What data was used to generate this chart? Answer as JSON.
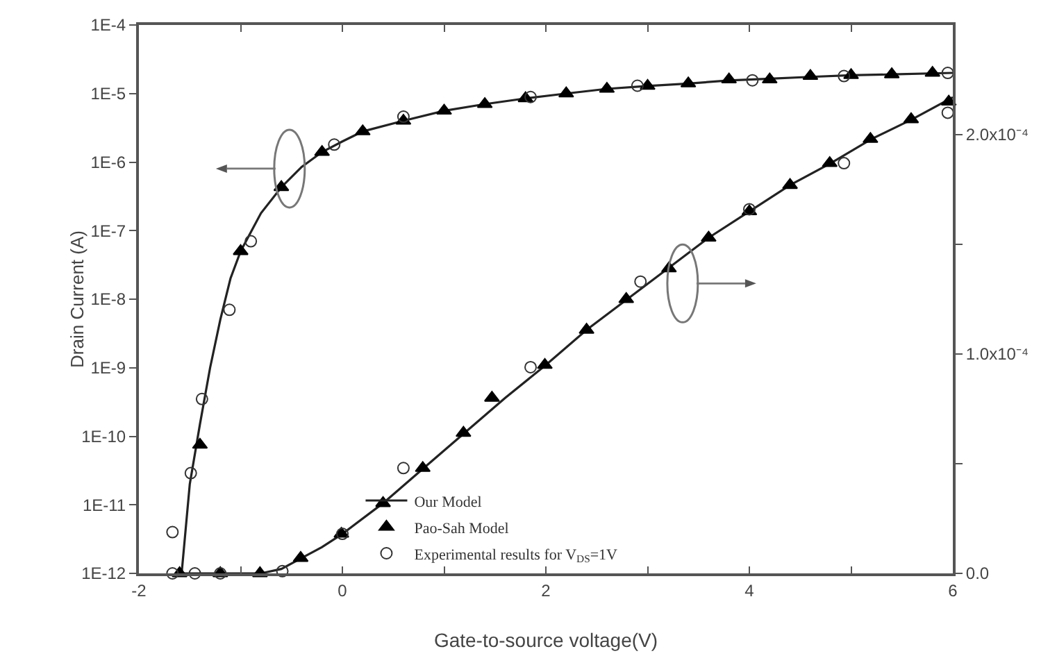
{
  "chart_data": {
    "type": "scatter",
    "xlabel": "Gate-to-source voltage(V)",
    "ylabel": "Drain Current (A)",
    "log": "y",
    "grid": false,
    "legend": "bottom",
    "xlim": [
      -2,
      6
    ],
    "xticks": [
      -2,
      {
        "value": -1,
        "label": null
      },
      0,
      {
        "value": 1,
        "label": null
      },
      2,
      {
        "value": 3,
        "label": null
      },
      4,
      {
        "value": 5,
        "label": null
      },
      6
    ],
    "ylim": [
      1e-12,
      0.0001
    ],
    "yticks": [
      {
        "value": 1e-12,
        "label": "1E-12"
      },
      {
        "value": 1e-11,
        "label": "1E-11"
      },
      {
        "value": 1e-10,
        "label": "1E-10"
      },
      {
        "value": 1e-09,
        "label": "1E-9"
      },
      {
        "value": 1e-08,
        "label": "1E-8"
      },
      {
        "value": 1e-07,
        "label": "1E-7"
      },
      {
        "value": 1e-06,
        "label": "1E-6"
      },
      {
        "value": 1e-05,
        "label": "1E-5"
      },
      {
        "value": 0.0001,
        "label": "1E-4"
      }
    ],
    "y2lim": [
      0,
      0.00025
    ],
    "y2ticks": [
      {
        "value": 0,
        "label": "0.0"
      },
      {
        "value": 5e-05,
        "label": null
      },
      {
        "value": 0.0001,
        "label": "1.0x10⁻⁴"
      },
      {
        "value": 0.00015,
        "label": null
      },
      {
        "value": 0.0002,
        "label": "2.0x10⁻⁴"
      }
    ],
    "series": [
      {
        "name": "Experimental results for V$_{DS}$=1V",
        "type": "scatter",
        "marker": "circle",
        "color": "#333333",
        "x": [
          -1.67,
          -1.49,
          -1.38,
          -1.11,
          -0.9,
          -0.08,
          0.6,
          1.85,
          2.9,
          4.03,
          4.93,
          5.95
        ],
        "values": [
          4e-12,
          2.9e-11,
          3.5e-10,
          7e-09,
          7e-08,
          1.8e-06,
          4.6e-06,
          8.9e-06,
          1.3e-05,
          1.56e-05,
          1.8e-05,
          2e-05
        ]
      },
      {
        "name": "Our Model",
        "type": "line",
        "marker": "none",
        "color": "#222222",
        "x": [
          -1.58,
          -1.5,
          -1.4,
          -1.3,
          -1.2,
          -1.1,
          -1.0,
          -0.8,
          -0.6,
          -0.4,
          -0.2,
          0,
          0.2,
          0.6,
          1.0,
          1.4,
          1.8,
          2.2,
          2.6,
          3.0,
          3.4,
          3.8,
          4.2,
          4.6,
          5.0,
          5.4,
          6.0
        ],
        "values": [
          1e-12,
          2e-11,
          1.5e-10,
          1e-09,
          5e-09,
          2e-08,
          5e-08,
          1.8e-07,
          4.3e-07,
          8.5e-07,
          1.4e-06,
          2e-06,
          2.8e-06,
          4e-06,
          5.6e-06,
          7e-06,
          8.5e-06,
          1e-05,
          1.17e-05,
          1.29e-05,
          1.4e-05,
          1.55e-05,
          1.65e-05,
          1.75e-05,
          1.85e-05,
          1.9e-05,
          2e-05
        ]
      },
      {
        "name": "Pao-Sah Model",
        "type": "scatter",
        "marker": "triangle",
        "color": "#000000",
        "x": [
          -1.4,
          -1.0,
          -0.6,
          -0.2,
          0.2,
          0.6,
          1.0,
          1.4,
          1.8,
          2.2,
          2.6,
          3.0,
          3.4,
          3.8,
          4.2,
          4.6,
          5.0,
          5.4,
          5.8
        ],
        "values": [
          7.5e-11,
          5e-08,
          4.3e-07,
          1.4e-06,
          2.8e-06,
          4e-06,
          5.6e-06,
          7e-06,
          8.5e-06,
          1e-05,
          1.17e-05,
          1.29e-05,
          1.4e-05,
          1.6e-05,
          1.6e-05,
          1.8e-05,
          1.85e-05,
          1.9e-05,
          2e-05
        ]
      },
      {
        "type": "scatter",
        "marker": "circle",
        "color": "#333333",
        "axis": "y2",
        "x": [
          -1.67,
          -1.45,
          -1.2,
          -0.59,
          0,
          0.6,
          1.85,
          2.93,
          4.0,
          4.93,
          5.95
        ],
        "values": [
          0,
          0,
          0,
          1e-06,
          1.8e-05,
          4.8e-05,
          9.4e-05,
          0.000133,
          0.000166,
          0.000187,
          0.00021
        ]
      },
      {
        "type": "line",
        "marker": "none",
        "color": "#222222",
        "axis": "y2",
        "x": [
          -1.6,
          -1.0,
          -0.8,
          -0.6,
          -0.4,
          -0.2,
          0,
          0.4,
          0.8,
          1.2,
          1.6,
          2.0,
          2.4,
          2.8,
          3.2,
          3.6,
          4.0,
          4.4,
          4.8,
          5.2,
          5.6,
          6.0
        ],
        "values": [
          0,
          0,
          0,
          2e-06,
          7e-06,
          1.2e-05,
          1.8e-05,
          3.2e-05,
          4.8e-05,
          6.4e-05,
          8e-05,
          9.5e-05,
          0.000111,
          0.000125,
          0.000139,
          0.000153,
          0.000165,
          0.000177,
          0.000187,
          0.000198,
          0.000207,
          0.000217
        ]
      },
      {
        "type": "scatter",
        "marker": "triangle",
        "color": "#000000",
        "axis": "y2",
        "x": [
          -1.6,
          -1.2,
          -0.81,
          -0.41,
          -0.01,
          0.4,
          0.79,
          1.19,
          1.47,
          1.99,
          2.4,
          2.79,
          3.21,
          3.6,
          4.0,
          4.4,
          4.79,
          5.19,
          5.59,
          5.96
        ],
        "values": [
          0,
          0,
          0,
          7e-06,
          1.8e-05,
          3.2e-05,
          4.8e-05,
          6.4e-05,
          8e-05,
          9.5e-05,
          0.000111,
          0.000125,
          0.000139,
          0.000153,
          0.000165,
          0.000177,
          0.000187,
          0.000198,
          0.000207,
          0.000215
        ]
      }
    ]
  }
}
